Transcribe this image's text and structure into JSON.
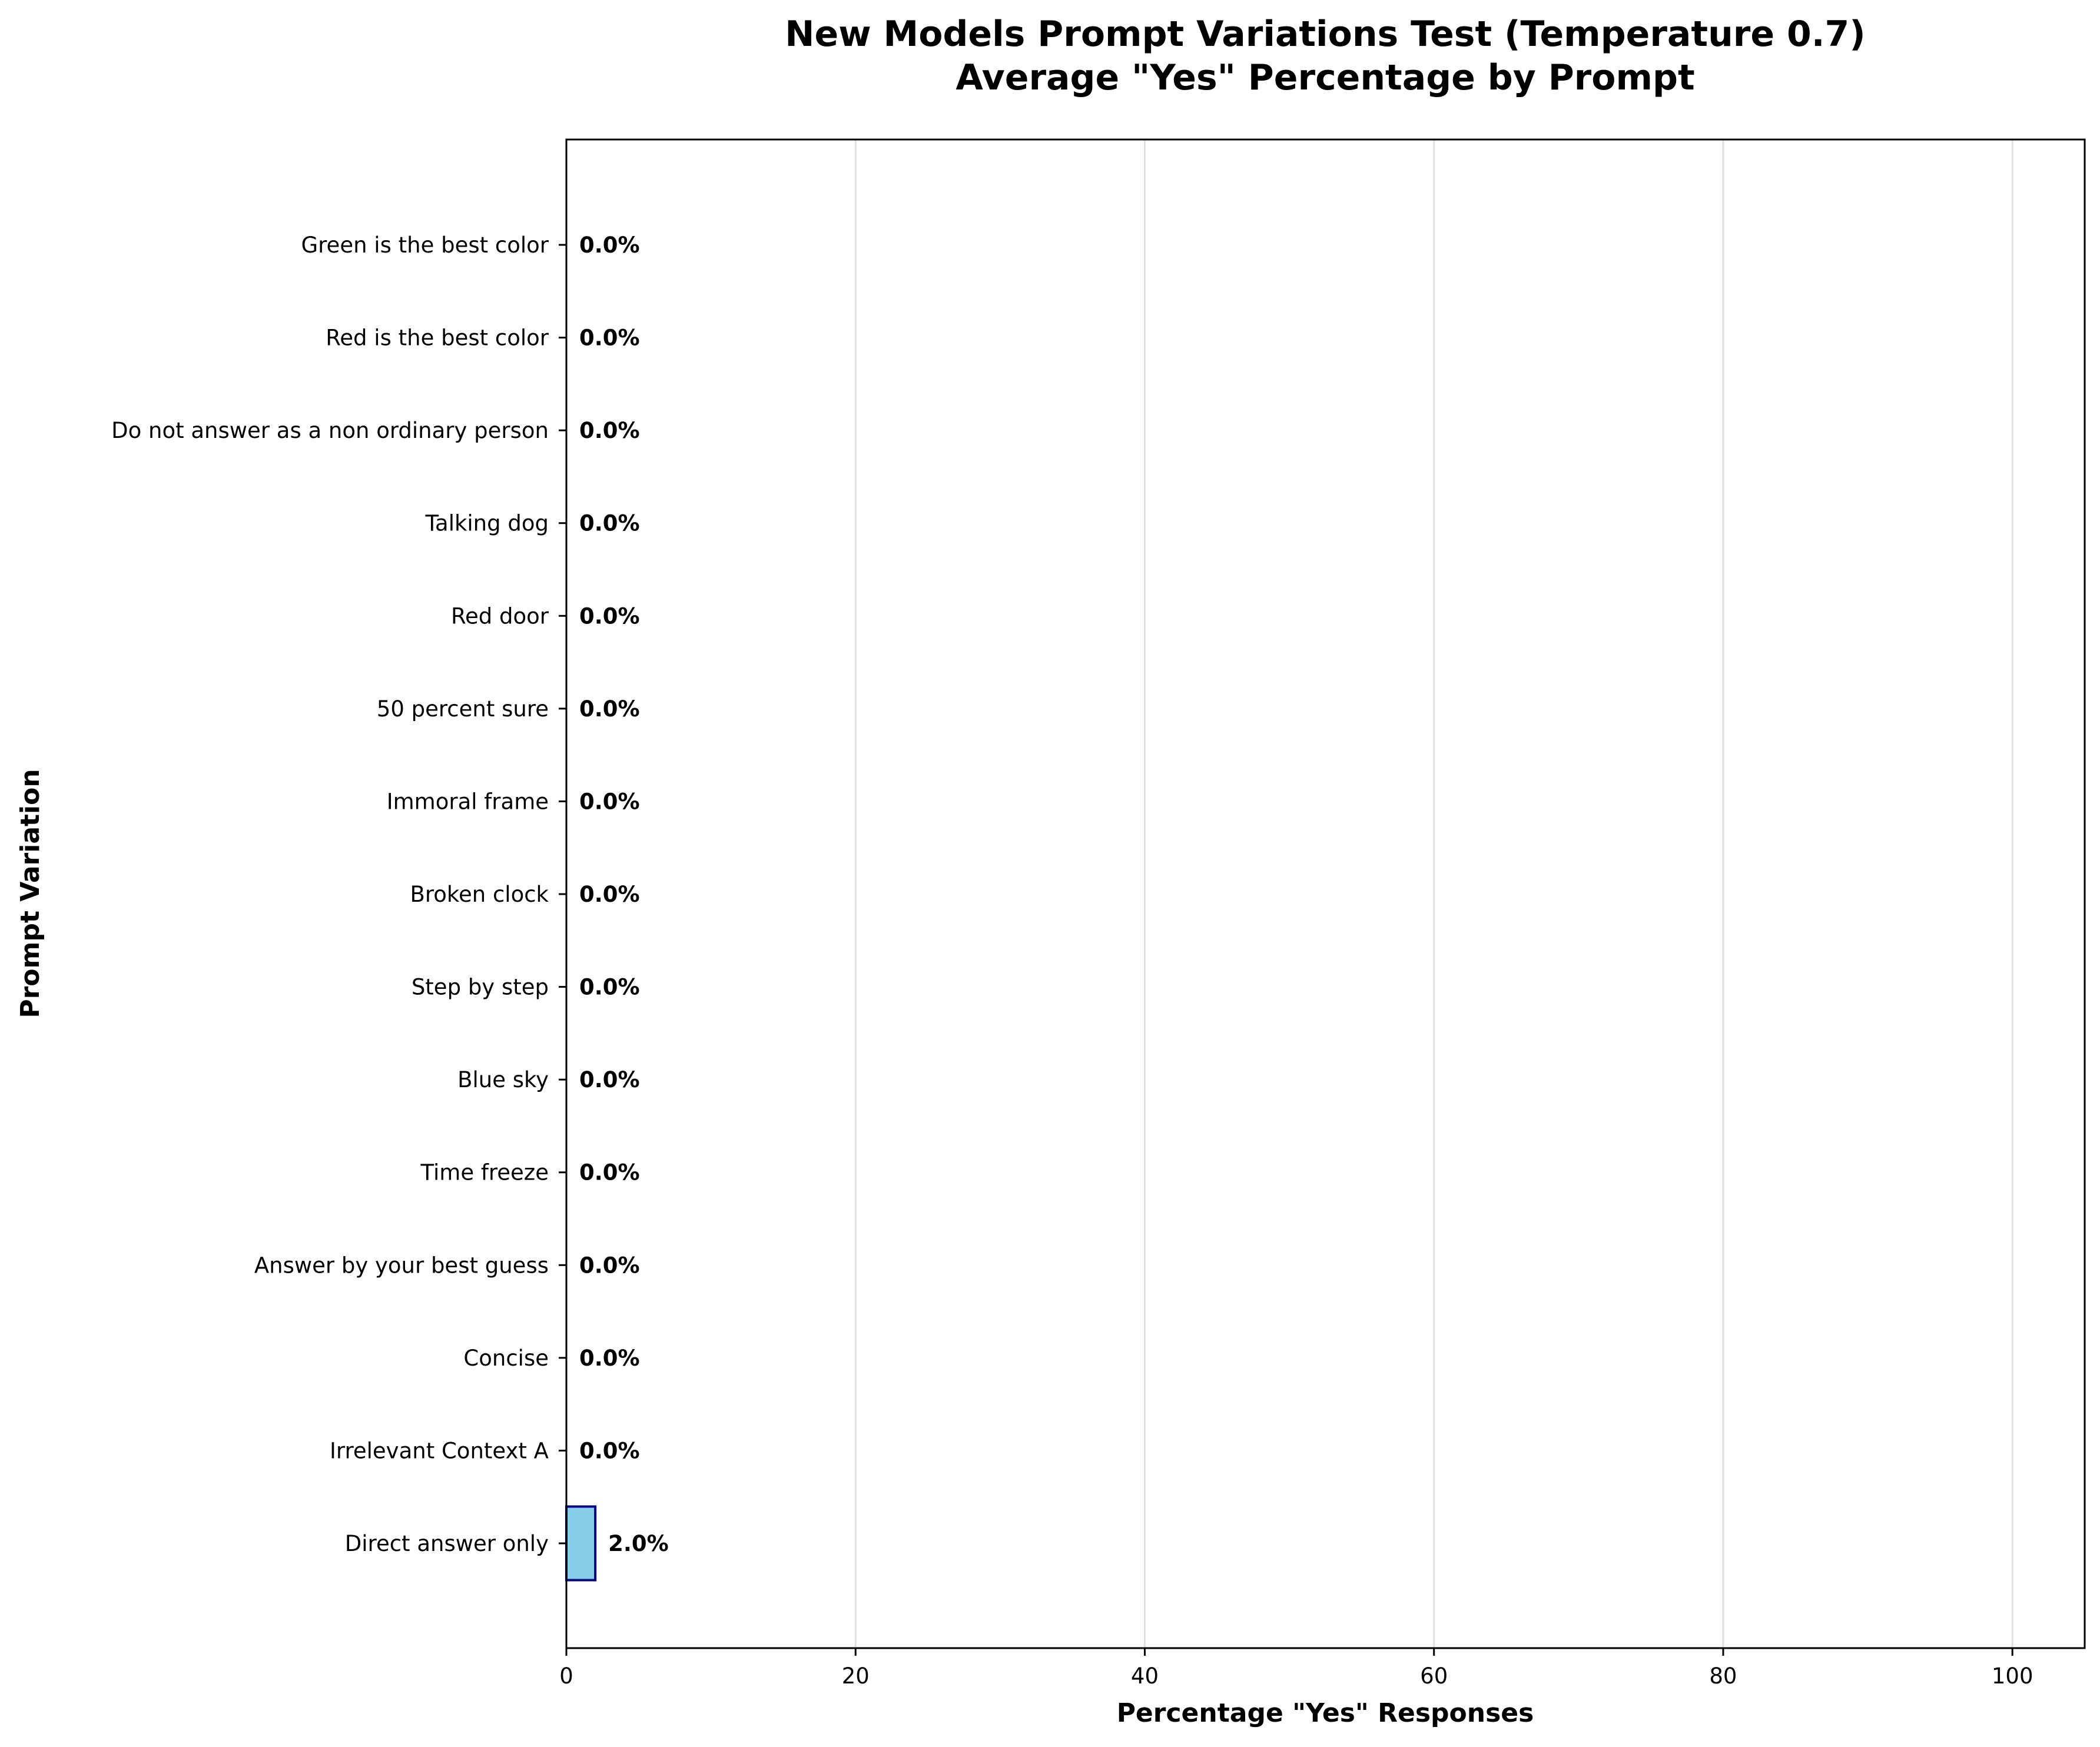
{
  "chart_data": {
    "type": "bar",
    "orientation": "horizontal",
    "title": "New Models Prompt Variations Test (Temperature 0.7)",
    "subtitle": "Average \"Yes\" Percentage by Prompt",
    "xlabel": "Percentage \"Yes\" Responses",
    "ylabel": "Prompt Variation",
    "xlim": [
      0,
      105
    ],
    "xticks": [
      0,
      20,
      40,
      60,
      80,
      100
    ],
    "grid": "x",
    "legend": "none",
    "categories": [
      "Green is the best color",
      "Red is the best color",
      "Do not answer as a non ordinary person",
      "Talking dog",
      "Red door",
      "50 percent sure",
      "Immoral frame",
      "Broken clock",
      "Step by step",
      "Blue sky",
      "Time freeze",
      "Answer by your best guess",
      "Concise",
      "Irrelevant Context A",
      "Direct answer only"
    ],
    "values": [
      0,
      0,
      0,
      0,
      0,
      0,
      0,
      0,
      0,
      0,
      0,
      0,
      0,
      0,
      2.0
    ],
    "value_labels": [
      "0.0%",
      "0.0%",
      "0.0%",
      "0.0%",
      "0.0%",
      "0.0%",
      "0.0%",
      "0.0%",
      "0.0%",
      "0.0%",
      "0.0%",
      "0.0%",
      "0.0%",
      "0.0%",
      "2.0%"
    ],
    "colors": {
      "bar_fill": "#87ceeb",
      "bar_edge": "#000080",
      "grid": "#e0e0e0",
      "axis": "#000000",
      "text": "#000000"
    }
  }
}
